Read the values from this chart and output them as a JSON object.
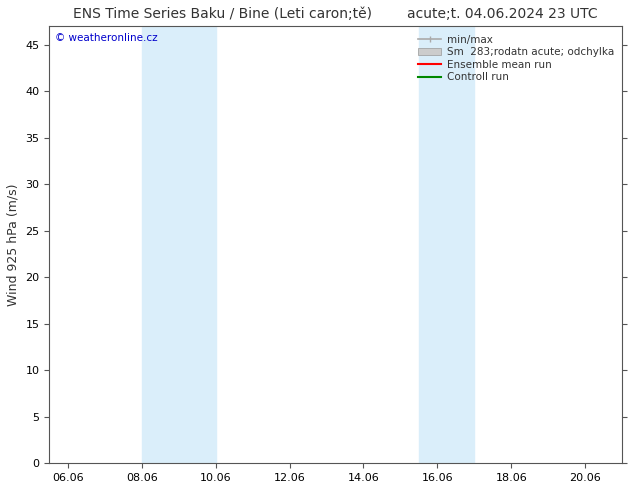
{
  "title": "ENS Time Series Baku / Bine (Leti caron;tě)        acute;t. 04.06.2024 23 UTC",
  "ylabel": "Wind 925 hPa (m/s)",
  "watermark": "© weatheronline.cz",
  "watermark_color": "#0000cc",
  "xlim_start": 5.5,
  "xlim_end": 21.0,
  "ylim_bottom": 0,
  "ylim_top": 47,
  "yticks": [
    0,
    5,
    10,
    15,
    20,
    25,
    30,
    35,
    40,
    45
  ],
  "xtick_labels": [
    "06.06",
    "08.06",
    "10.06",
    "12.06",
    "14.06",
    "16.06",
    "18.06",
    "20.06"
  ],
  "xtick_positions": [
    6,
    8,
    10,
    12,
    14,
    16,
    18,
    20
  ],
  "shaded_regions": [
    {
      "xmin": 8.0,
      "xmax": 10.0,
      "color": "#daeefa"
    },
    {
      "xmin": 15.5,
      "xmax": 17.0,
      "color": "#daeefa"
    }
  ],
  "legend_entries": [
    {
      "label": "min/max",
      "color": "#aaaaaa",
      "type": "errorbar"
    },
    {
      "label": "Sm  283;rodatn acute; odchylka",
      "color": "#cccccc",
      "type": "patch"
    },
    {
      "label": "Ensemble mean run",
      "color": "#ff0000",
      "type": "line"
    },
    {
      "label": "Controll run",
      "color": "#008800",
      "type": "line"
    }
  ],
  "bg_color": "#ffffff",
  "title_fontsize": 10,
  "axis_label_fontsize": 9,
  "tick_fontsize": 8,
  "legend_fontsize": 7.5,
  "text_color": "#333333"
}
